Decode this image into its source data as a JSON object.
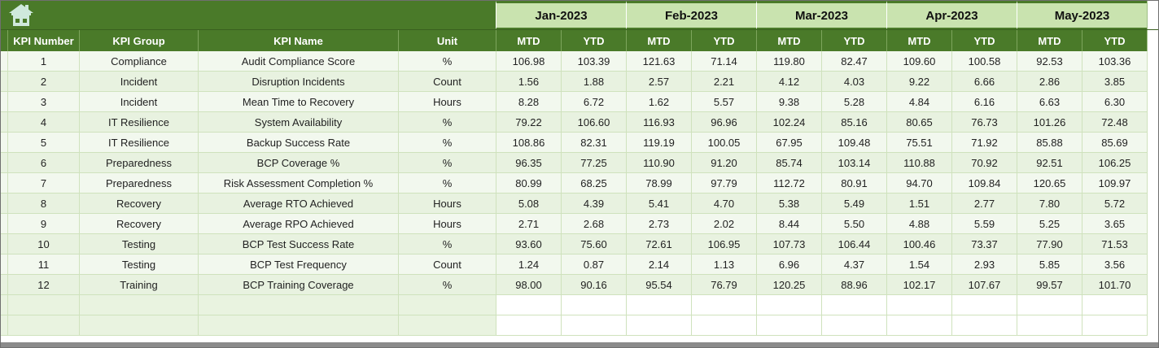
{
  "header": {
    "label_columns": [
      "KPI Number",
      "KPI Group",
      "KPI Name",
      "Unit"
    ],
    "months": [
      "Jan-2023",
      "Feb-2023",
      "Mar-2023",
      "Apr-2023",
      "May-2023"
    ],
    "sub_columns": [
      "MTD",
      "YTD"
    ]
  },
  "colors": {
    "header_green": "#4a7a29",
    "month_band_green": "#c9e3af",
    "row_light": "#f2f8ee",
    "row_green": "#e8f2e0",
    "bottom_bar_gray": "#8b8b8b",
    "home_icon": "#cfe9dc"
  },
  "table": {
    "rows": [
      {
        "kpi_number": "1",
        "kpi_group": "Compliance",
        "kpi_name": "Audit Compliance Score",
        "unit": "%",
        "values": [
          "106.98",
          "103.39",
          "121.63",
          "71.14",
          "119.80",
          "82.47",
          "109.60",
          "100.58",
          "92.53",
          "103.36"
        ]
      },
      {
        "kpi_number": "2",
        "kpi_group": "Incident",
        "kpi_name": "Disruption Incidents",
        "unit": "Count",
        "values": [
          "1.56",
          "1.88",
          "2.57",
          "2.21",
          "4.12",
          "4.03",
          "9.22",
          "6.66",
          "2.86",
          "3.85"
        ]
      },
      {
        "kpi_number": "3",
        "kpi_group": "Incident",
        "kpi_name": "Mean Time to Recovery",
        "unit": "Hours",
        "values": [
          "8.28",
          "6.72",
          "1.62",
          "5.57",
          "9.38",
          "5.28",
          "4.84",
          "6.16",
          "6.63",
          "6.30"
        ]
      },
      {
        "kpi_number": "4",
        "kpi_group": "IT Resilience",
        "kpi_name": "System Availability",
        "unit": "%",
        "values": [
          "79.22",
          "106.60",
          "116.93",
          "96.96",
          "102.24",
          "85.16",
          "80.65",
          "76.73",
          "101.26",
          "72.48"
        ]
      },
      {
        "kpi_number": "5",
        "kpi_group": "IT Resilience",
        "kpi_name": "Backup Success Rate",
        "unit": "%",
        "values": [
          "108.86",
          "82.31",
          "119.19",
          "100.05",
          "67.95",
          "109.48",
          "75.51",
          "71.92",
          "85.88",
          "85.69"
        ]
      },
      {
        "kpi_number": "6",
        "kpi_group": "Preparedness",
        "kpi_name": "BCP Coverage %",
        "unit": "%",
        "values": [
          "96.35",
          "77.25",
          "110.90",
          "91.20",
          "85.74",
          "103.14",
          "110.88",
          "70.92",
          "92.51",
          "106.25"
        ]
      },
      {
        "kpi_number": "7",
        "kpi_group": "Preparedness",
        "kpi_name": "Risk Assessment Completion %",
        "unit": "%",
        "values": [
          "80.99",
          "68.25",
          "78.99",
          "97.79",
          "112.72",
          "80.91",
          "94.70",
          "109.84",
          "120.65",
          "109.97"
        ]
      },
      {
        "kpi_number": "8",
        "kpi_group": "Recovery",
        "kpi_name": "Average RTO Achieved",
        "unit": "Hours",
        "values": [
          "5.08",
          "4.39",
          "5.41",
          "4.70",
          "5.38",
          "5.49",
          "1.51",
          "2.77",
          "7.80",
          "5.72"
        ]
      },
      {
        "kpi_number": "9",
        "kpi_group": "Recovery",
        "kpi_name": "Average RPO Achieved",
        "unit": "Hours",
        "values": [
          "2.71",
          "2.68",
          "2.73",
          "2.02",
          "8.44",
          "5.50",
          "4.88",
          "5.59",
          "5.25",
          "3.65"
        ]
      },
      {
        "kpi_number": "10",
        "kpi_group": "Testing",
        "kpi_name": "BCP Test Success Rate",
        "unit": "%",
        "values": [
          "93.60",
          "75.60",
          "72.61",
          "106.95",
          "107.73",
          "106.44",
          "100.46",
          "73.37",
          "77.90",
          "71.53"
        ]
      },
      {
        "kpi_number": "11",
        "kpi_group": "Testing",
        "kpi_name": "BCP Test Frequency",
        "unit": "Count",
        "values": [
          "1.24",
          "0.87",
          "2.14",
          "1.13",
          "6.96",
          "4.37",
          "1.54",
          "2.93",
          "5.85",
          "3.56"
        ]
      },
      {
        "kpi_number": "12",
        "kpi_group": "Training",
        "kpi_name": "BCP Training Coverage",
        "unit": "%",
        "values": [
          "98.00",
          "90.16",
          "95.54",
          "76.79",
          "120.25",
          "88.96",
          "102.17",
          "107.67",
          "99.57",
          "101.70"
        ]
      }
    ],
    "empty_row_count": 2
  }
}
